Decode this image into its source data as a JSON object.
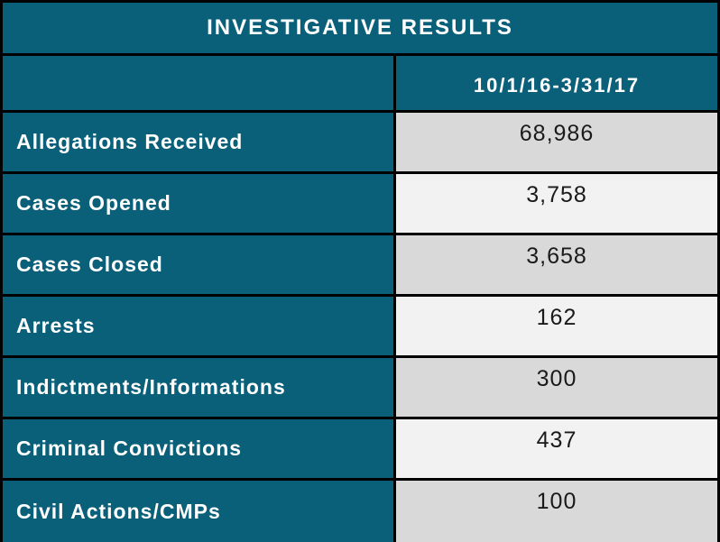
{
  "chart_data": {
    "type": "table",
    "title": "INVESTIGATIVE RESULTS",
    "column_header": "10/1/16-3/31/17",
    "categories": [
      "Allegations Received",
      "Cases Opened",
      "Cases Closed",
      "Arrests",
      "Indictments/Informations",
      "Criminal Convictions",
      "Civil Actions/CMPs"
    ],
    "values": [
      "68,986",
      "3,758",
      "3,658",
      "162",
      "300",
      "437",
      "100"
    ],
    "values_numeric": [
      68986,
      3758,
      3658,
      162,
      300,
      437,
      100
    ]
  },
  "colors": {
    "teal": "#0A5F79",
    "band_dark": "#D9D9D9",
    "band_light": "#F2F2F2",
    "border": "#000000",
    "label_text": "#FFFFFF",
    "value_text": "#1A1A1A"
  }
}
